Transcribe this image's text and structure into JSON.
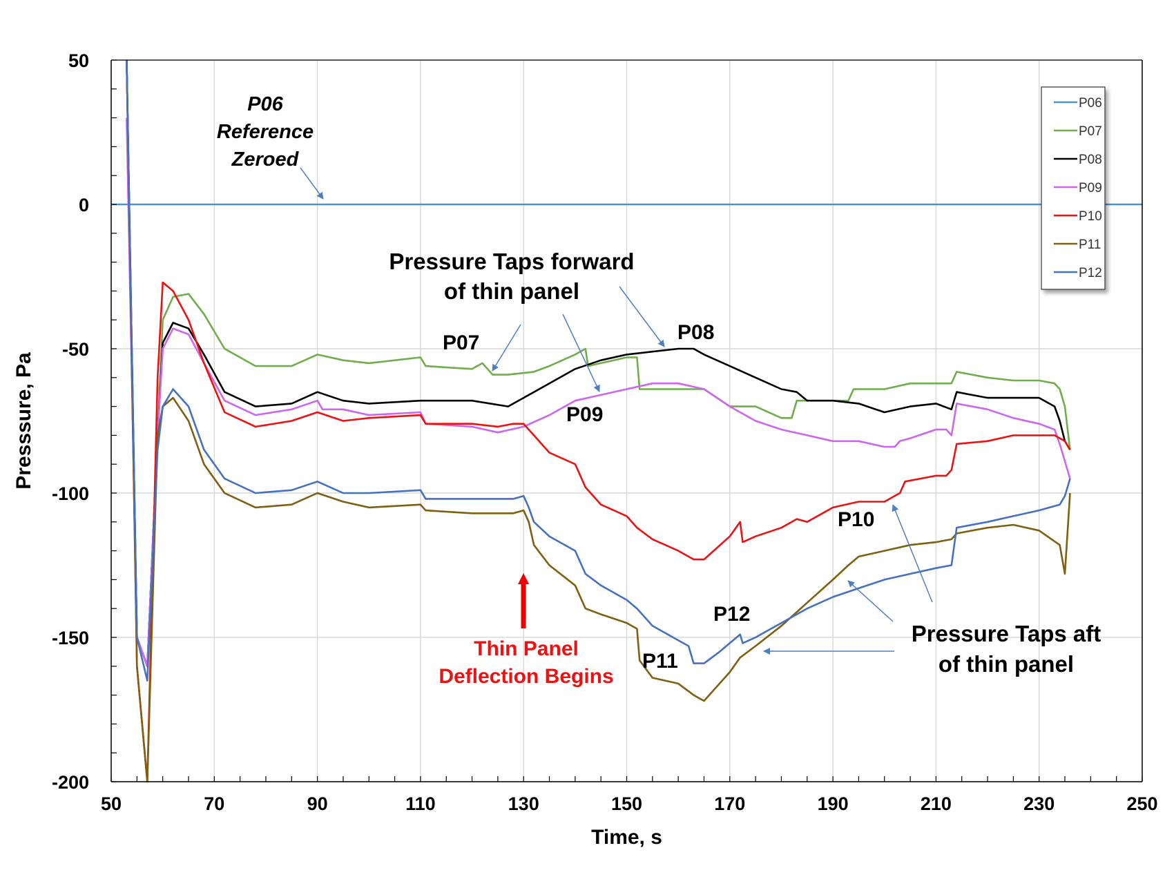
{
  "colors": {
    "P06": "#4f93c6",
    "P07": "#6fae4b",
    "P08": "#000000",
    "P09": "#cc66ee",
    "P10": "#ee1111",
    "P11": "#7f5f10",
    "P12": "#4571c0",
    "grid": "#d9d9d9",
    "arrow": "#4f7fc0",
    "red_arrow": "#ee0000"
  },
  "chart_data": {
    "type": "line",
    "title": "",
    "xlabel": "Time, s",
    "ylabel": "Presssure, Pa",
    "xlim": [
      50,
      250
    ],
    "ylim": [
      -200,
      50
    ],
    "xticks": [
      50,
      70,
      90,
      110,
      130,
      150,
      170,
      190,
      210,
      230,
      250
    ],
    "yticks": [
      50,
      0,
      -50,
      -100,
      -150,
      -200
    ],
    "xtick_labels": [
      "50",
      "70",
      "90",
      "110",
      "130",
      "150",
      "170",
      "190",
      "210",
      "230",
      "250"
    ],
    "ytick_labels": [
      "50",
      "0",
      "-50",
      "-100",
      "-150",
      "-200"
    ],
    "grid": true,
    "legend_position": "top-right",
    "series": [
      {
        "name": "P06",
        "x": [
          50,
          250
        ],
        "y": [
          0,
          0
        ]
      },
      {
        "name": "P07",
        "x": [
          53,
          55,
          57,
          59,
          60,
          62,
          65,
          68,
          72,
          78,
          85,
          90,
          95,
          100,
          110,
          111,
          120,
          122,
          124,
          127,
          132,
          135,
          140,
          142,
          142.5,
          145,
          150,
          152,
          152.5,
          160,
          165,
          170,
          175,
          180,
          182,
          183,
          185,
          190,
          193,
          194,
          200,
          205,
          210,
          213,
          214,
          220,
          225,
          230,
          233,
          234,
          235,
          236
        ],
        "y": [
          50,
          -150,
          -160,
          -80,
          -40,
          -32,
          -31,
          -38,
          -50,
          -56,
          -56,
          -52,
          -54,
          -55,
          -53,
          -56,
          -57,
          -55,
          -59,
          -59,
          -58,
          -56,
          -52,
          -50,
          -56,
          -55,
          -53,
          -53,
          -64,
          -64,
          -64,
          -70,
          -70,
          -74,
          -74,
          -68,
          -68,
          -68,
          -68,
          -64,
          -64,
          -62,
          -62,
          -62,
          -58,
          -60,
          -61,
          -61,
          -62,
          -64,
          -70,
          -85
        ]
      },
      {
        "name": "P08",
        "x": [
          53,
          55,
          57,
          59,
          60,
          62,
          65,
          68,
          72,
          78,
          85,
          90,
          95,
          100,
          110,
          120,
          127,
          130,
          135,
          140,
          145,
          150,
          155,
          160,
          163,
          165,
          170,
          175,
          180,
          183,
          185,
          190,
          195,
          200,
          205,
          210,
          213,
          214,
          220,
          225,
          230,
          233,
          234,
          235,
          236
        ],
        "y": [
          50,
          -150,
          -160,
          -80,
          -48,
          -41,
          -43,
          -52,
          -65,
          -70,
          -69,
          -65,
          -68,
          -69,
          -68,
          -68,
          -70,
          -67,
          -62,
          -57,
          -54,
          -52,
          -51,
          -50,
          -50,
          -52,
          -56,
          -60,
          -64,
          -65,
          -68,
          -68,
          -69,
          -72,
          -70,
          -69,
          -71,
          -65,
          -67,
          -67,
          -67,
          -70,
          -75,
          -82,
          -85
        ]
      },
      {
        "name": "P09",
        "x": [
          53,
          55,
          57,
          59,
          60,
          62,
          65,
          68,
          72,
          78,
          85,
          90,
          91,
          95,
          100,
          110,
          111,
          120,
          125,
          130,
          135,
          140,
          145,
          150,
          155,
          160,
          165,
          170,
          175,
          180,
          185,
          190,
          195,
          200,
          202,
          203,
          205,
          210,
          212,
          213,
          214,
          220,
          225,
          230,
          233,
          234,
          236
        ],
        "y": [
          30,
          -150,
          -160,
          -80,
          -50,
          -43,
          -45,
          -55,
          -68,
          -73,
          -71,
          -68,
          -71,
          -71,
          -73,
          -72,
          -76,
          -77,
          -79,
          -77,
          -73,
          -68,
          -66,
          -64,
          -62,
          -62,
          -64,
          -70,
          -75,
          -78,
          -80,
          -82,
          -82,
          -84,
          -84,
          -82,
          -81,
          -78,
          -78,
          -80,
          -69,
          -71,
          -74,
          -76,
          -78,
          -83,
          -95
        ]
      },
      {
        "name": "P10",
        "x": [
          53,
          55,
          57,
          59,
          60,
          62,
          65,
          68,
          72,
          78,
          85,
          90,
          95,
          100,
          110,
          111,
          120,
          125,
          128,
          130,
          132,
          135,
          140,
          142,
          145,
          150,
          152,
          155,
          160,
          163,
          165,
          170,
          172,
          172.5,
          175,
          180,
          183,
          185,
          190,
          195,
          200,
          203,
          204,
          210,
          212,
          213,
          214,
          220,
          225,
          230,
          233,
          235,
          236
        ],
        "y": [
          50,
          -160,
          -200,
          -60,
          -27,
          -30,
          -40,
          -55,
          -72,
          -77,
          -75,
          -72,
          -75,
          -74,
          -73,
          -76,
          -76,
          -77,
          -76,
          -76,
          -80,
          -86,
          -90,
          -98,
          -104,
          -108,
          -112,
          -116,
          -120,
          -123,
          -123,
          -115,
          -110,
          -117,
          -115,
          -112,
          -109,
          -110,
          -105,
          -103,
          -103,
          -100,
          -96,
          -94,
          -94,
          -92,
          -83,
          -82,
          -80,
          -80,
          -80,
          -82,
          -85
        ]
      },
      {
        "name": "P11",
        "x": [
          53,
          55,
          57,
          59,
          60,
          62,
          65,
          68,
          72,
          78,
          85,
          90,
          95,
          100,
          110,
          111,
          120,
          128,
          130,
          131,
          132,
          135,
          140,
          142,
          145,
          150,
          152,
          152.5,
          155,
          160,
          163,
          165,
          170,
          172,
          175,
          180,
          185,
          190,
          193,
          195,
          200,
          205,
          210,
          213,
          214,
          220,
          225,
          230,
          234,
          235,
          236
        ],
        "y": [
          50,
          -160,
          -200,
          -80,
          -70,
          -67,
          -75,
          -90,
          -100,
          -105,
          -104,
          -100,
          -103,
          -105,
          -104,
          -106,
          -107,
          -107,
          -106,
          -110,
          -118,
          -125,
          -132,
          -140,
          -142,
          -145,
          -147,
          -158,
          -164,
          -166,
          -170,
          -172,
          -162,
          -157,
          -153,
          -146,
          -138,
          -130,
          -125,
          -122,
          -120,
          -118,
          -117,
          -116,
          -114,
          -112,
          -111,
          -113,
          -118,
          -128,
          -100
        ]
      },
      {
        "name": "P12",
        "x": [
          53,
          55,
          57,
          59,
          60,
          62,
          65,
          68,
          72,
          78,
          85,
          90,
          95,
          100,
          110,
          111,
          120,
          128,
          130,
          131,
          132,
          135,
          140,
          142,
          145,
          150,
          152,
          155,
          160,
          162,
          163,
          165,
          168,
          172,
          172.5,
          175,
          180,
          185,
          190,
          195,
          200,
          205,
          210,
          213,
          214,
          220,
          225,
          230,
          234,
          235,
          236
        ],
        "y": [
          50,
          -150,
          -165,
          -85,
          -70,
          -64,
          -70,
          -85,
          -95,
          -100,
          -99,
          -96,
          -100,
          -100,
          -99,
          -102,
          -102,
          -102,
          -101,
          -105,
          -110,
          -115,
          -120,
          -128,
          -132,
          -137,
          -140,
          -146,
          -151,
          -153,
          -159,
          -159,
          -155,
          -149,
          -152,
          -150,
          -145,
          -140,
          -136,
          -133,
          -130,
          -128,
          -126,
          -125,
          -112,
          -110,
          -108,
          -106,
          -104,
          -101,
          -95
        ]
      }
    ],
    "annotations": {
      "p06_reference": [
        "P06",
        "Reference",
        "Zeroed"
      ],
      "forward_taps": [
        "Pressure Taps forward",
        "of thin panel"
      ],
      "aft_taps": [
        "Pressure Taps aft",
        "of thin panel"
      ],
      "deflection": [
        "Thin Panel",
        "Deflection Begins"
      ],
      "labels": {
        "P07": "P07",
        "P08": "P08",
        "P09": "P09",
        "P10": "P10",
        "P11": "P11",
        "P12": "P12"
      }
    }
  }
}
